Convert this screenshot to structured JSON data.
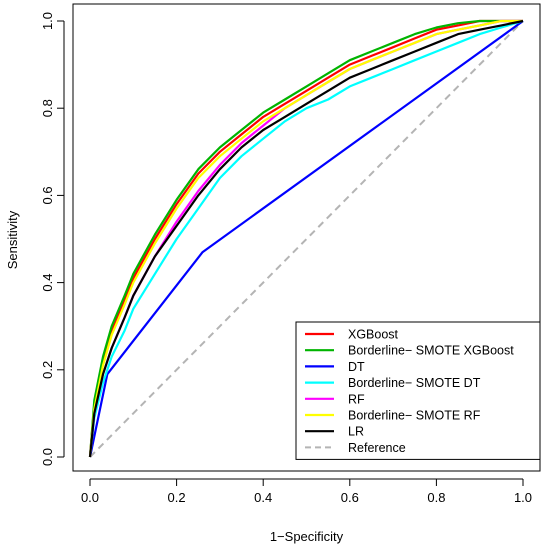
{
  "chart_data": {
    "type": "line",
    "xlabel": "1−Specificity",
    "ylabel": "Sensitivity",
    "xlim": [
      0,
      1
    ],
    "ylim": [
      0,
      1
    ],
    "xticks": [
      "0.0",
      "0.2",
      "0.4",
      "0.6",
      "0.8",
      "1.0"
    ],
    "yticks": [
      "0.0",
      "0.2",
      "0.4",
      "0.6",
      "0.8",
      "1.0"
    ],
    "grid": false,
    "legend_position": "bottom-right",
    "series": [
      {
        "name": "XGBoost",
        "color": "#ff0000",
        "dash": "solid",
        "x": [
          0,
          0.01,
          0.03,
          0.05,
          0.08,
          0.1,
          0.15,
          0.2,
          0.25,
          0.3,
          0.35,
          0.4,
          0.45,
          0.5,
          0.55,
          0.6,
          0.65,
          0.7,
          0.75,
          0.8,
          0.85,
          0.9,
          0.95,
          1
        ],
        "y": [
          0,
          0.12,
          0.22,
          0.29,
          0.36,
          0.41,
          0.5,
          0.58,
          0.65,
          0.7,
          0.74,
          0.78,
          0.81,
          0.84,
          0.87,
          0.9,
          0.92,
          0.94,
          0.96,
          0.98,
          0.99,
          1.0,
          1.0,
          1.0
        ]
      },
      {
        "name": "Borderline− SMOTE XGBoost",
        "color": "#00b400",
        "dash": "solid",
        "x": [
          0,
          0.01,
          0.03,
          0.05,
          0.08,
          0.1,
          0.15,
          0.2,
          0.25,
          0.3,
          0.35,
          0.4,
          0.45,
          0.5,
          0.55,
          0.6,
          0.65,
          0.7,
          0.75,
          0.8,
          0.85,
          0.9,
          0.95,
          1
        ],
        "y": [
          0,
          0.13,
          0.23,
          0.3,
          0.37,
          0.42,
          0.51,
          0.59,
          0.66,
          0.71,
          0.75,
          0.79,
          0.82,
          0.85,
          0.88,
          0.91,
          0.93,
          0.95,
          0.97,
          0.985,
          0.995,
          1.0,
          1.0,
          1.0
        ]
      },
      {
        "name": "DT",
        "color": "#0000ff",
        "dash": "solid",
        "x": [
          0,
          0.04,
          0.26,
          1
        ],
        "y": [
          0,
          0.19,
          0.47,
          1.0
        ]
      },
      {
        "name": "Borderline− SMOTE DT",
        "color": "#00ffff",
        "dash": "solid",
        "x": [
          0,
          0.01,
          0.03,
          0.05,
          0.08,
          0.1,
          0.15,
          0.2,
          0.25,
          0.3,
          0.35,
          0.4,
          0.45,
          0.5,
          0.55,
          0.6,
          0.65,
          0.7,
          0.75,
          0.8,
          0.85,
          0.9,
          0.95,
          1
        ],
        "y": [
          0,
          0.09,
          0.17,
          0.23,
          0.29,
          0.34,
          0.42,
          0.5,
          0.57,
          0.64,
          0.69,
          0.73,
          0.77,
          0.8,
          0.82,
          0.85,
          0.87,
          0.89,
          0.91,
          0.93,
          0.95,
          0.97,
          0.985,
          1.0
        ]
      },
      {
        "name": "RF",
        "color": "#ff00ff",
        "dash": "solid",
        "x": [
          0,
          0.01,
          0.03,
          0.05,
          0.08,
          0.1,
          0.15,
          0.2,
          0.25,
          0.3,
          0.35,
          0.4,
          0.45,
          0.5,
          0.55,
          0.6,
          0.65,
          0.7,
          0.75,
          0.8,
          0.85,
          0.9,
          0.95,
          1
        ],
        "y": [
          0,
          0.1,
          0.19,
          0.25,
          0.32,
          0.37,
          0.46,
          0.54,
          0.61,
          0.67,
          0.72,
          0.76,
          0.8,
          0.83,
          0.86,
          0.89,
          0.91,
          0.93,
          0.95,
          0.97,
          0.98,
          0.99,
          1.0,
          1.0
        ]
      },
      {
        "name": "Borderline− SMOTE RF",
        "color": "#ffff00",
        "dash": "solid",
        "x": [
          0,
          0.01,
          0.03,
          0.05,
          0.08,
          0.1,
          0.15,
          0.2,
          0.25,
          0.3,
          0.35,
          0.4,
          0.45,
          0.5,
          0.55,
          0.6,
          0.65,
          0.7,
          0.75,
          0.8,
          0.85,
          0.9,
          0.95,
          1
        ],
        "y": [
          0,
          0.11,
          0.21,
          0.28,
          0.35,
          0.4,
          0.49,
          0.57,
          0.64,
          0.69,
          0.73,
          0.77,
          0.8,
          0.83,
          0.86,
          0.89,
          0.91,
          0.93,
          0.95,
          0.97,
          0.98,
          0.99,
          1.0,
          1.0
        ]
      },
      {
        "name": "LR",
        "color": "#000000",
        "dash": "solid",
        "x": [
          0,
          0.01,
          0.03,
          0.05,
          0.08,
          0.1,
          0.15,
          0.2,
          0.25,
          0.3,
          0.35,
          0.4,
          0.45,
          0.5,
          0.55,
          0.6,
          0.65,
          0.7,
          0.75,
          0.8,
          0.85,
          0.9,
          0.95,
          1
        ],
        "y": [
          0,
          0.1,
          0.19,
          0.25,
          0.32,
          0.37,
          0.46,
          0.53,
          0.6,
          0.66,
          0.71,
          0.75,
          0.78,
          0.81,
          0.84,
          0.87,
          0.89,
          0.91,
          0.93,
          0.95,
          0.97,
          0.98,
          0.99,
          1.0
        ]
      },
      {
        "name": "Reference",
        "color": "#b4b4b4",
        "dash": "dashed",
        "x": [
          0,
          1
        ],
        "y": [
          0,
          1
        ]
      }
    ]
  }
}
